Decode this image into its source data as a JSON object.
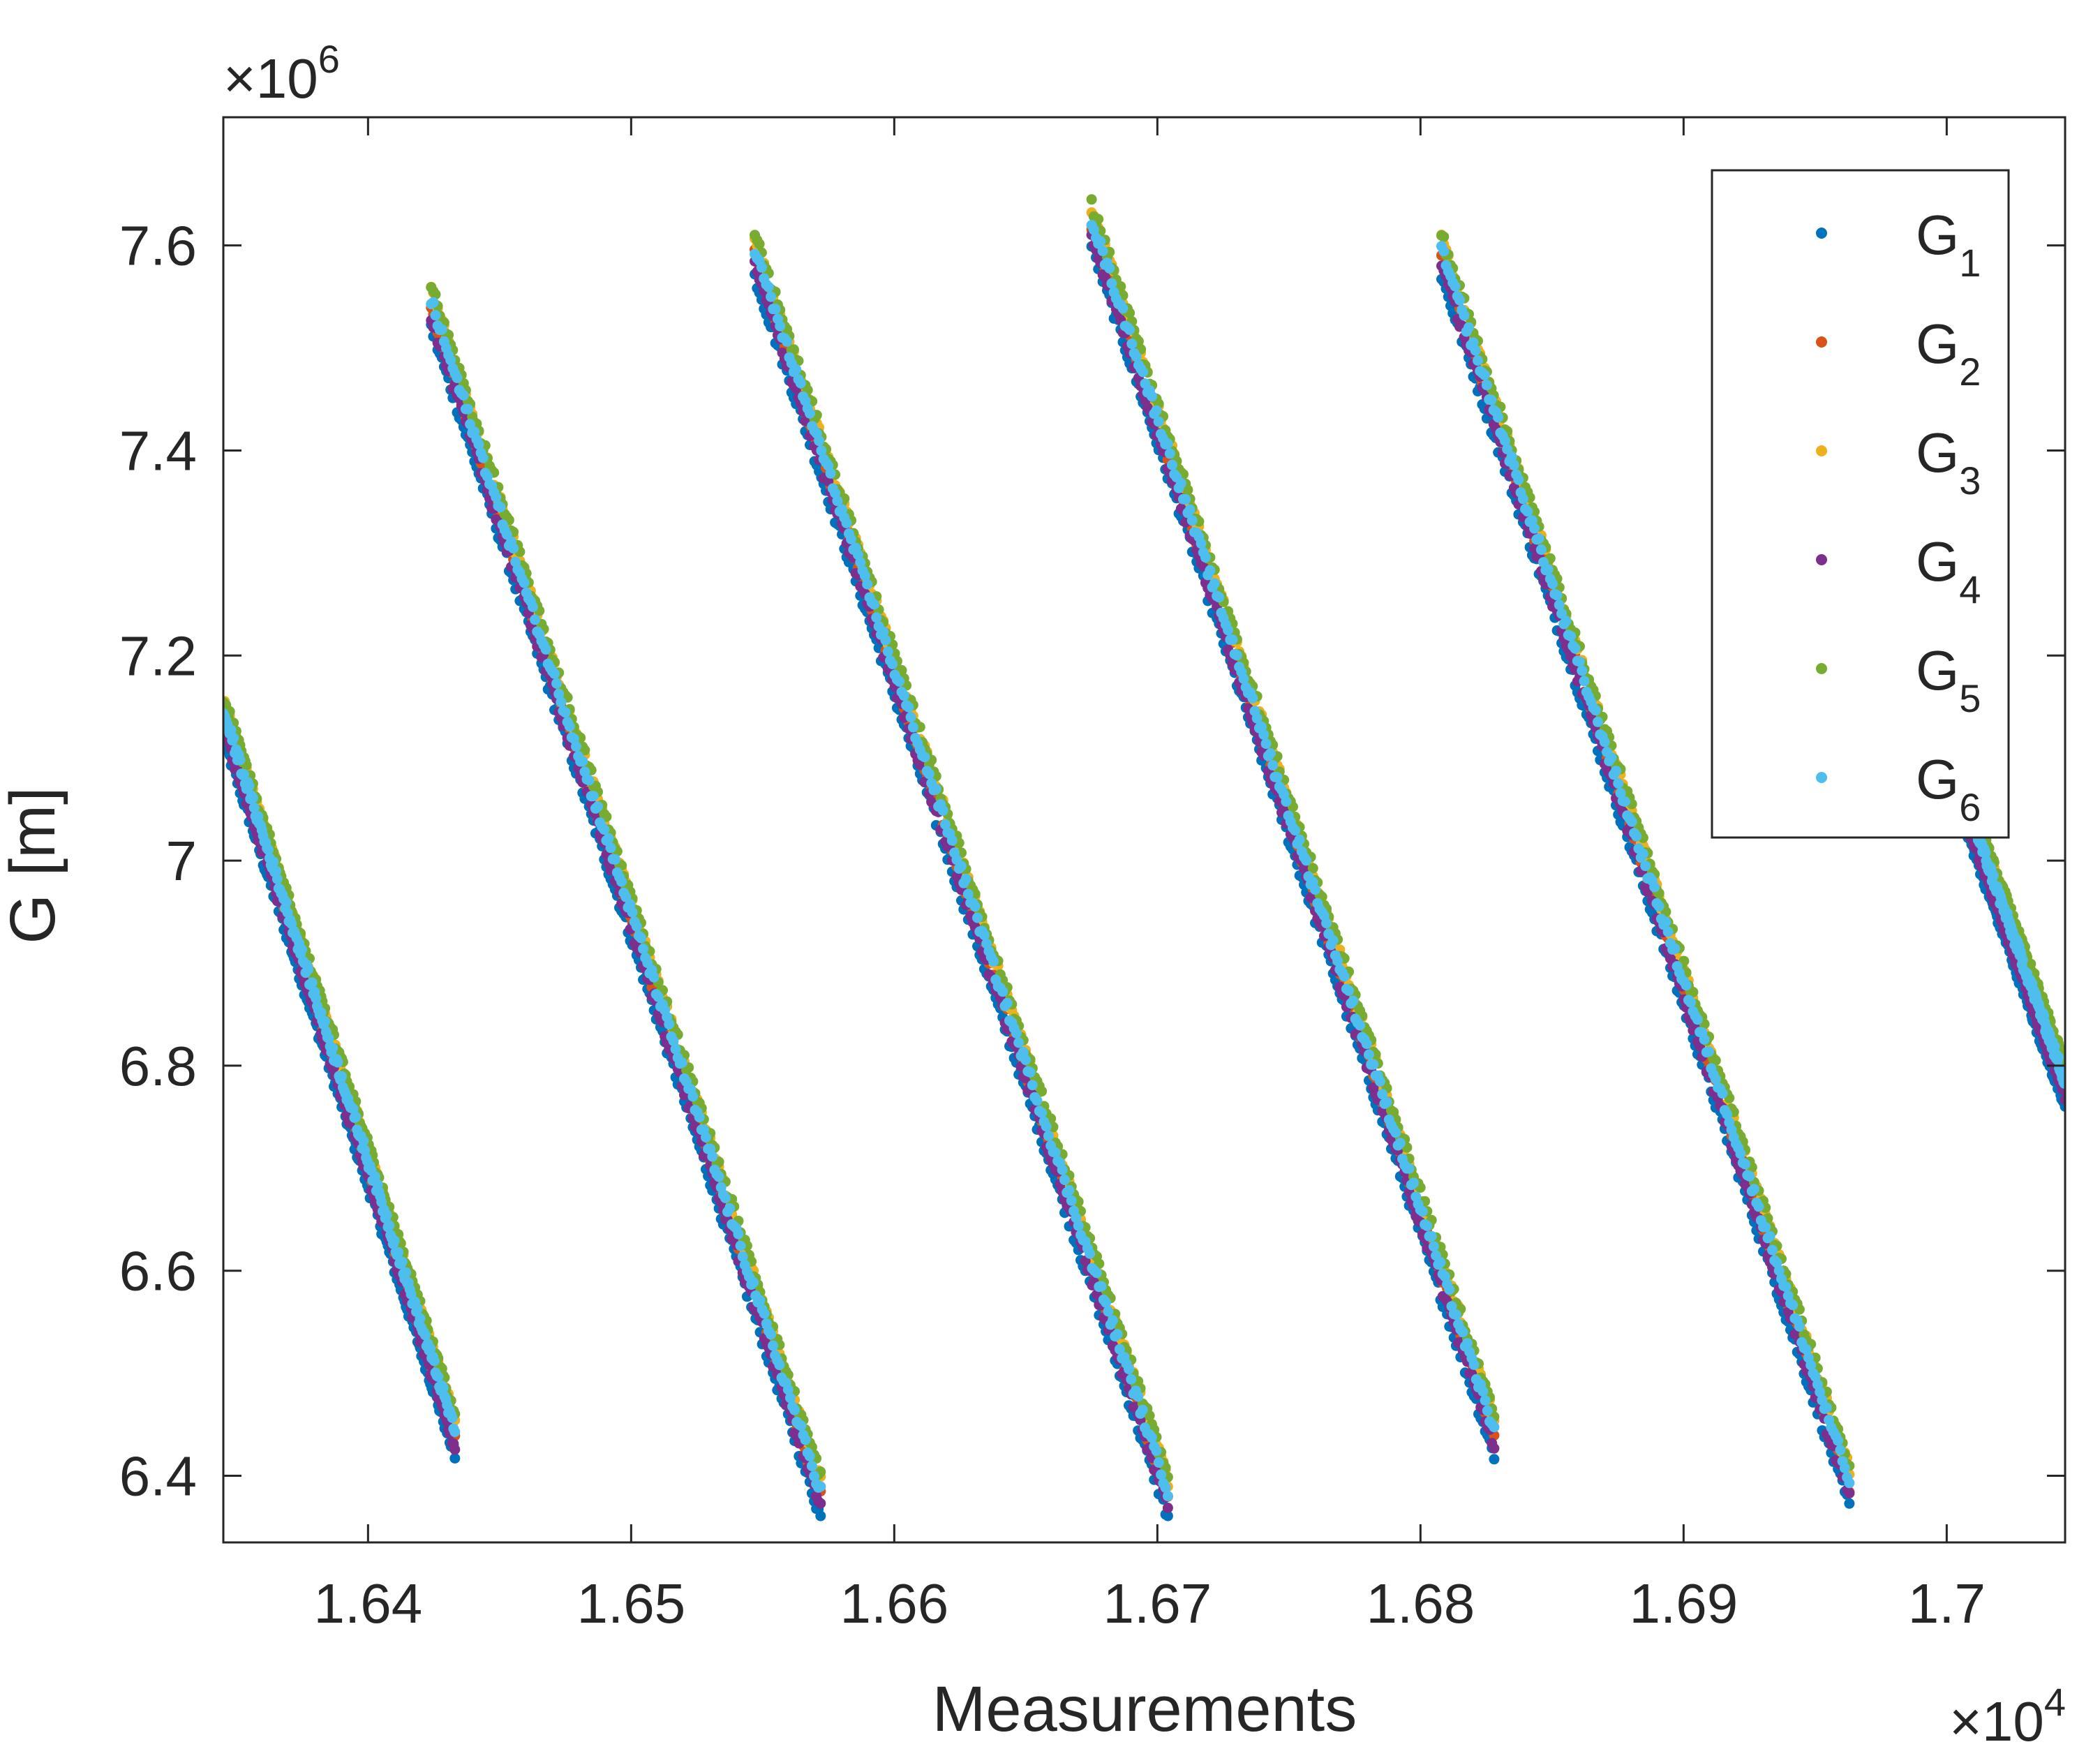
{
  "chart_data": {
    "type": "scatter",
    "xlabel": "Measurements",
    "ylabel": "G [m]",
    "x_exponent_label": "×10",
    "x_exponent": "4",
    "y_exponent_label": "×10",
    "y_exponent": "6",
    "xlim": [
      1.6345,
      1.7045
    ],
    "ylim": [
      6.335,
      7.725
    ],
    "x_ticks": [
      1.64,
      1.65,
      1.66,
      1.67,
      1.68,
      1.69,
      1.7
    ],
    "x_tick_labels": [
      "1.64",
      "1.65",
      "1.66",
      "1.67",
      "1.68",
      "1.69",
      "1.7"
    ],
    "y_ticks": [
      6.4,
      6.6,
      6.8,
      7.0,
      7.2,
      7.4,
      7.6
    ],
    "y_tick_labels": [
      "6.4",
      "6.6",
      "6.8",
      "7",
      "7.2",
      "7.4",
      "7.6"
    ],
    "grid": false,
    "legend_position": "top-right",
    "series": [
      {
        "name": "G",
        "subscript": "1",
        "color": "#0072BD",
        "y_offset": -0.02
      },
      {
        "name": "G",
        "subscript": "2",
        "color": "#D95319",
        "y_offset": 0.0
      },
      {
        "name": "G",
        "subscript": "3",
        "color": "#EDB120",
        "y_offset": 0.015
      },
      {
        "name": "G",
        "subscript": "4",
        "color": "#7E2F8E",
        "y_offset": -0.01
      },
      {
        "name": "G",
        "subscript": "5",
        "color": "#77AC30",
        "y_offset": 0.02
      },
      {
        "name": "G",
        "subscript": "6",
        "color": "#4DBEEE",
        "y_offset": 0.005
      }
    ],
    "segments": [
      {
        "x_start": 1.6345,
        "y_start": 7.14,
        "x_end": 1.6433,
        "y_end": 6.44
      },
      {
        "x_start": 1.6424,
        "y_start": 7.54,
        "x_end": 1.6572,
        "y_end": 6.38
      },
      {
        "x_start": 1.6547,
        "y_start": 7.59,
        "x_end": 1.6704,
        "y_end": 6.38
      },
      {
        "x_start": 1.6675,
        "y_start": 7.62,
        "x_end": 1.6828,
        "y_end": 6.44
      },
      {
        "x_start": 1.6808,
        "y_start": 7.59,
        "x_end": 1.6963,
        "y_end": 6.39
      },
      {
        "x_start": 1.6995,
        "y_start": 7.14,
        "x_end": 1.7045,
        "y_end": 6.78
      }
    ]
  }
}
